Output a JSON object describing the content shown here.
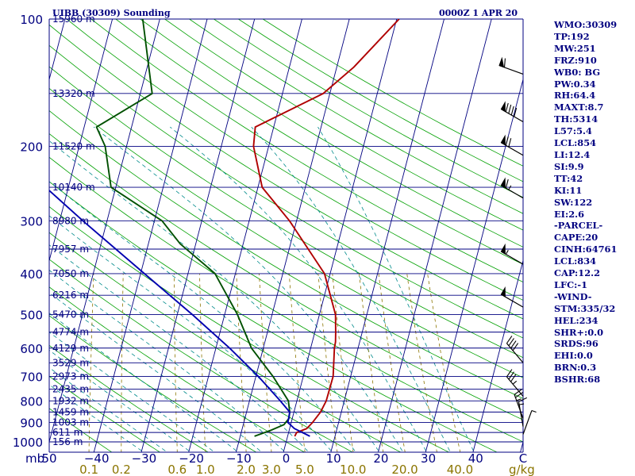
{
  "header": {
    "station": "UIBB (30309) Sounding",
    "time": "0000Z  1 APR 20"
  },
  "axes": {
    "pressure_unit": "mb",
    "mixing_unit": "g/kg",
    "temp_unit": "C",
    "pressure_ticks": [
      {
        "p": 100,
        "label": "100"
      },
      {
        "p": 200,
        "label": "200"
      },
      {
        "p": 300,
        "label": "300"
      },
      {
        "p": 400,
        "label": "400"
      },
      {
        "p": 500,
        "label": "500"
      },
      {
        "p": 600,
        "label": "600"
      },
      {
        "p": 700,
        "label": "700"
      },
      {
        "p": 800,
        "label": "800"
      },
      {
        "p": 900,
        "label": "900"
      },
      {
        "p": 1000,
        "label": "1000"
      }
    ],
    "temperature_ticks": [
      {
        "t": -40,
        "label": "−40"
      },
      {
        "t": -30,
        "label": "−30"
      },
      {
        "t": -20,
        "label": "−20"
      },
      {
        "t": -10,
        "label": "−10"
      },
      {
        "t": 0,
        "label": "0"
      },
      {
        "t": 10,
        "label": "10"
      },
      {
        "t": 20,
        "label": "20"
      },
      {
        "t": 30,
        "label": "30"
      },
      {
        "t": 40,
        "label": "40"
      }
    ],
    "temperature_left_label": "50",
    "mixing_ratio_labels": [
      "0.1",
      "0.2",
      "0.6",
      "1.0",
      "2.0",
      "3.0",
      "5.0",
      "10.0",
      "20.0",
      "40.0"
    ]
  },
  "stats": [
    "WMO:30309",
    "TP:192",
    "MW:251",
    "FRZ:910",
    "WB0: BG",
    "PW:0.34",
    "RH:64.4",
    "MAXT:8.7",
    "TH:5314",
    "L57:5.4",
    "LCL:854",
    "LI:12.4",
    "SI:9.9",
    "TT:42",
    "KI:11",
    "SW:122",
    "EI:2.6",
    "-PARCEL-",
    "CAPE:20",
    "CINH:64761",
    "LCL:834",
    "CAP:12.2",
    "LFC:-1",
    "-WIND-",
    "STM:335/32",
    "HEL:234",
    "SHR+:0.0",
    "SRDS:96",
    "EHI:0.0",
    "BRN:0.3",
    "BSHR:68"
  ],
  "colors": {
    "isobar": "#000080",
    "isotherm": "#000080",
    "dry_adiabat": "#00a000",
    "moist_adiabat": "#008b8b",
    "mixing_ratio": "#8b7500",
    "temperature": "#b00000",
    "dewpoint": "#005000",
    "parcel": "#0000b0",
    "text": "#000080"
  },
  "chart_data": {
    "type": "line",
    "title": "UIBB (30309) Sounding",
    "xlabel": "C",
    "ylabel": "mb",
    "ylim": [
      1050,
      100
    ],
    "x_range_at_surface": [
      -50,
      50
    ],
    "y_scale": "log",
    "skewed": true,
    "grid": true,
    "height_labels": [
      {
        "p": 100,
        "h": "15960 m"
      },
      {
        "p": 150,
        "h": "13320 m"
      },
      {
        "p": 200,
        "h": "11520 m"
      },
      {
        "p": 250,
        "h": "10140 m"
      },
      {
        "p": 300,
        "h": "8980 m"
      },
      {
        "p": 350,
        "h": "7957 m"
      },
      {
        "p": 400,
        "h": "7050 m"
      },
      {
        "p": 450,
        "h": "6216 m"
      },
      {
        "p": 500,
        "h": "5470 m"
      },
      {
        "p": 550,
        "h": "4774 m"
      },
      {
        "p": 600,
        "h": "4129 m"
      },
      {
        "p": 650,
        "h": "3529 m"
      },
      {
        "p": 700,
        "h": "2973 m"
      },
      {
        "p": 750,
        "h": "2435 m"
      },
      {
        "p": 800,
        "h": "1932 m"
      },
      {
        "p": 850,
        "h": "1459 m"
      },
      {
        "p": 900,
        "h": "1003 m"
      },
      {
        "p": 950,
        "h": "611 m"
      },
      {
        "p": 1000,
        "h": "156 m"
      }
    ],
    "series": [
      {
        "key": "temperature",
        "points": [
          [
            970,
            1.5
          ],
          [
            950,
            1.7
          ],
          [
            930,
            3.6
          ],
          [
            900,
            4.5
          ],
          [
            850,
            5.6
          ],
          [
            800,
            6.2
          ],
          [
            700,
            6.3
          ],
          [
            600,
            5.0
          ],
          [
            580,
            4.9
          ],
          [
            550,
            4.4
          ],
          [
            500,
            3.4
          ],
          [
            400,
            -1.2
          ],
          [
            300,
            -11.5
          ],
          [
            250,
            -19.1
          ],
          [
            200,
            -23.2
          ],
          [
            180,
            -23.9
          ],
          [
            150,
            -11.4
          ],
          [
            130,
            -6.4
          ],
          [
            100,
            0.5
          ]
        ]
      },
      {
        "key": "dewpoint",
        "points": [
          [
            970,
            -7.0
          ],
          [
            940,
            -4.0
          ],
          [
            910,
            -1.4
          ],
          [
            880,
            -0.7
          ],
          [
            850,
            -0.9
          ],
          [
            800,
            -1.8
          ],
          [
            700,
            -6.4
          ],
          [
            600,
            -12.5
          ],
          [
            500,
            -17.3
          ],
          [
            400,
            -24.3
          ],
          [
            340,
            -33.3
          ],
          [
            300,
            -38.4
          ],
          [
            250,
            -51.0
          ],
          [
            200,
            -54.5
          ],
          [
            180,
            -57.4
          ],
          [
            150,
            -47.5
          ],
          [
            100,
            -53.6
          ]
        ]
      },
      {
        "key": "parcel",
        "points": [
          [
            970,
            4.7
          ],
          [
            930,
            1.0
          ],
          [
            900,
            -0.7
          ],
          [
            850,
            -0.9
          ],
          [
            800,
            -3.5
          ],
          [
            700,
            -9.5
          ],
          [
            600,
            -17.1
          ],
          [
            500,
            -26.8
          ],
          [
            400,
            -39.2
          ],
          [
            300,
            -55.1
          ],
          [
            250,
            -64.8
          ],
          [
            200,
            -76.5
          ],
          [
            150,
            -91.7
          ],
          [
            120,
            -102.6
          ]
        ]
      }
    ],
    "wind_barbs": [
      {
        "p": 135,
        "dir": 290,
        "speed": 60
      },
      {
        "p": 175,
        "dir": 300,
        "speed": 90
      },
      {
        "p": 210,
        "dir": 300,
        "speed": 70
      },
      {
        "p": 265,
        "dir": 300,
        "speed": 65
      },
      {
        "p": 380,
        "dir": 300,
        "speed": 55
      },
      {
        "p": 480,
        "dir": 300,
        "speed": 50
      },
      {
        "p": 650,
        "dir": 320,
        "speed": 40
      },
      {
        "p": 780,
        "dir": 320,
        "speed": 35
      },
      {
        "p": 880,
        "dir": 340,
        "speed": 25
      },
      {
        "p": 920,
        "dir": 350,
        "speed": 15
      },
      {
        "p": 960,
        "dir": 20,
        "speed": 5
      }
    ]
  }
}
